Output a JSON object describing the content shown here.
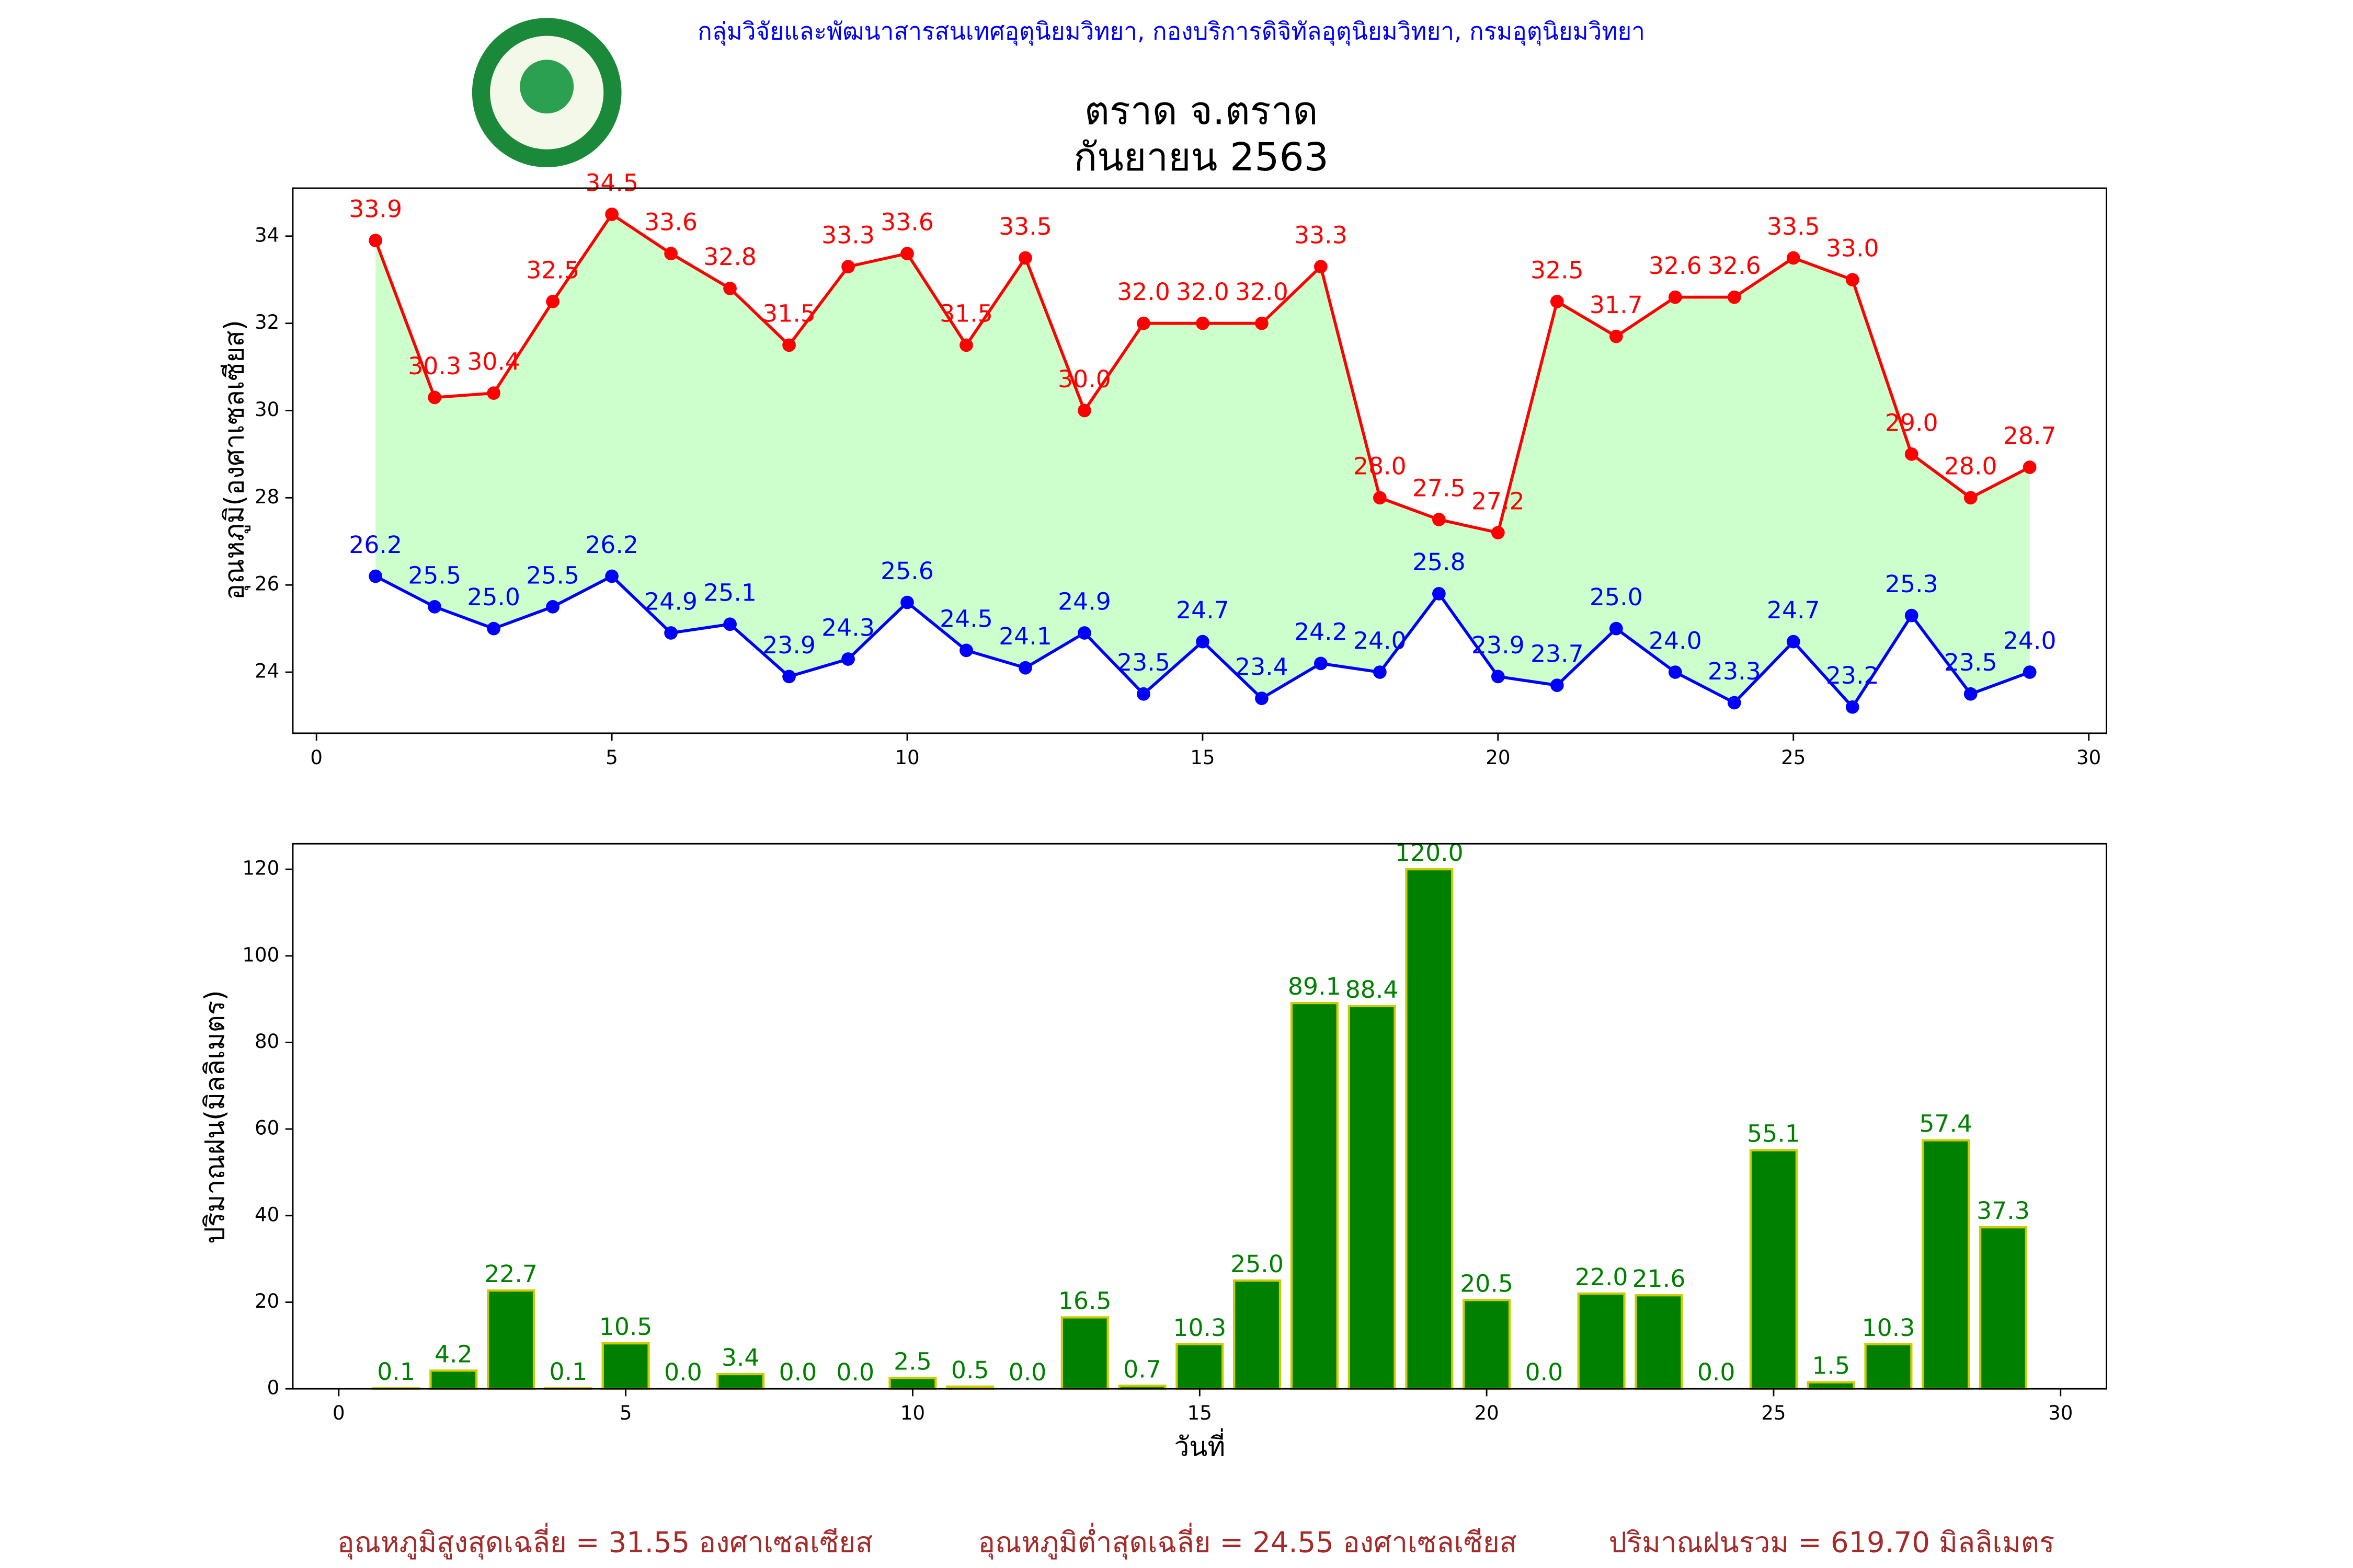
{
  "header": {
    "text": "กลุ่มวิจัยและพัฒนาสารสนเทศอุตุนิยมวิทยา, กองบริการดิจิทัลอุตุนิยมวิทยา, กรมอุตุนิยมวิทยา"
  },
  "chart_data": [
    {
      "type": "line",
      "title": "ตราด จ.ตราด",
      "subtitle": "กันยายน 2563",
      "y_label": "อุณหภูมิ(องศาเซลเซียส)",
      "x": [
        1,
        2,
        3,
        4,
        5,
        6,
        7,
        8,
        9,
        10,
        11,
        12,
        13,
        14,
        15,
        16,
        17,
        18,
        19,
        20,
        21,
        22,
        23,
        24,
        25,
        26,
        27,
        28,
        29
      ],
      "series": [
        {
          "name": "max",
          "color": "#ff0000",
          "values": [
            33.9,
            30.3,
            30.4,
            32.5,
            34.5,
            33.6,
            32.8,
            31.5,
            33.3,
            33.6,
            31.5,
            33.5,
            30.0,
            32.0,
            32.0,
            32.0,
            33.3,
            28.0,
            27.5,
            27.2,
            32.5,
            31.7,
            32.6,
            32.6,
            33.5,
            33.0,
            29.0,
            28.0,
            28.7
          ],
          "value_labels": [
            "33.9",
            "30.3",
            "30.4",
            "32.5",
            "34.5",
            "33.6",
            "32.8",
            "31.5",
            "33.3",
            "33.6",
            "31.5",
            "33.5",
            "30.0",
            "32.0",
            "32.0",
            "32.0",
            "33.3",
            "28.0",
            "27.5",
            "27.2",
            "32.5",
            "31.7",
            "32.6",
            "32.6",
            "33.5",
            "33.0",
            "29.0",
            "28.0",
            "28.7"
          ]
        },
        {
          "name": "min",
          "color": "#0000ff",
          "values": [
            26.2,
            25.5,
            25.0,
            25.5,
            26.2,
            24.9,
            25.1,
            23.9,
            24.3,
            25.6,
            24.5,
            24.1,
            24.9,
            23.5,
            24.7,
            23.4,
            24.2,
            24.0,
            25.8,
            23.9,
            23.7,
            25.0,
            24.0,
            23.3,
            24.7,
            23.2,
            25.3,
            23.5,
            24.0
          ],
          "value_labels": [
            "26.2",
            "25.5",
            "25.0",
            "25.5",
            "26.2",
            "24.9",
            "25.1",
            "23.9",
            "24.3",
            "25.6",
            "24.5",
            "24.1",
            "24.9",
            "23.5",
            "24.7",
            "23.4",
            "24.2",
            "24.0",
            "25.8",
            "23.9",
            "23.7",
            "25.0",
            "24.0",
            "23.3",
            "24.7",
            "23.2",
            "25.3",
            "23.5",
            "24.0"
          ]
        }
      ],
      "fill_color": "#ccffcc",
      "xlim": [
        -0.4,
        30.3
      ],
      "xticks": [
        0,
        5,
        10,
        15,
        20,
        25,
        30
      ],
      "ylim": [
        22.6,
        35.1
      ],
      "yticks": [
        24,
        26,
        28,
        30,
        32,
        34
      ]
    },
    {
      "type": "bar",
      "x_label": "วันที่",
      "y_label": "ปริมาณฝน(มิลลิเมตร)",
      "x": [
        1,
        2,
        3,
        4,
        5,
        6,
        7,
        8,
        9,
        10,
        11,
        12,
        13,
        14,
        15,
        16,
        17,
        18,
        19,
        20,
        21,
        22,
        23,
        24,
        25,
        26,
        27,
        28,
        29
      ],
      "values": [
        0.1,
        4.2,
        22.7,
        0.1,
        10.5,
        0.0,
        3.4,
        0.0,
        0.0,
        2.5,
        0.5,
        0.0,
        16.5,
        0.7,
        10.3,
        25.0,
        89.1,
        88.4,
        120.0,
        20.5,
        0.0,
        22.0,
        21.6,
        0.0,
        55.1,
        1.5,
        10.3,
        57.4,
        37.3
      ],
      "value_labels": [
        "0.1",
        "4.2",
        "22.7",
        "0.1",
        "10.5",
        "0.0",
        "3.4",
        "0.0",
        "0.0",
        "2.5",
        "0.5",
        "0.0",
        "16.5",
        "0.7",
        "10.3",
        "25.0",
        "89.1",
        "88.4",
        "120.0",
        "20.5",
        "0.0",
        "22.0",
        "21.6",
        "0.0",
        "55.1",
        "1.5",
        "10.3",
        "57.4",
        "37.3"
      ],
      "color": "#008000",
      "edge_color": "#cccc00",
      "xlim": [
        -0.8,
        30.8
      ],
      "xticks": [
        0,
        5,
        10,
        15,
        20,
        25,
        30
      ],
      "ylim": [
        0,
        125.9
      ],
      "yticks": [
        0,
        20,
        40,
        60,
        80,
        100,
        120
      ]
    }
  ],
  "footer": [
    "อุณหภูมิสูงสุดเฉลี่ย = 31.55 องศาเซลเซียส",
    "อุณหภูมิต่ำสุดเฉลี่ย = 24.55 องศาเซลเซียส",
    "ปริมาณฝนรวม = 619.70 มิลลิเมตร"
  ]
}
